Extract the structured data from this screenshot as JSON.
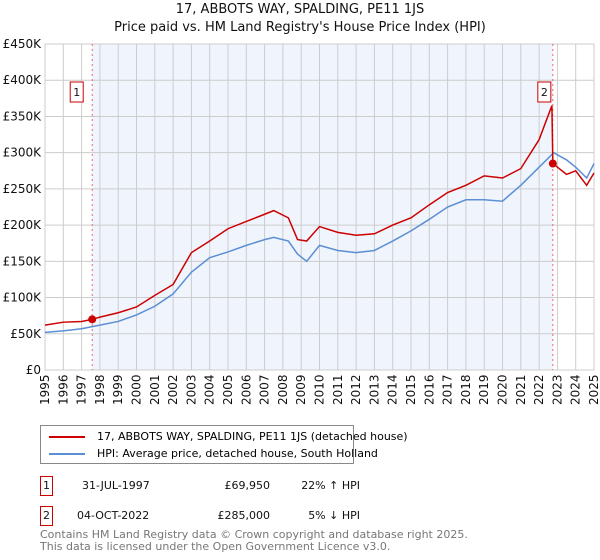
{
  "chart_data": {
    "type": "line",
    "title": "17, ABBOTS WAY, SPALDING, PE11 1JS",
    "subtitle": "Price paid vs. HM Land Registry's House Price Index (HPI)",
    "xlim": [
      1995,
      2025
    ],
    "ylim": [
      0,
      450000
    ],
    "yticks": [
      {
        "v": 0,
        "l": "£0"
      },
      {
        "v": 50000,
        "l": "£50K"
      },
      {
        "v": 100000,
        "l": "£100K"
      },
      {
        "v": 150000,
        "l": "£150K"
      },
      {
        "v": 200000,
        "l": "£200K"
      },
      {
        "v": 250000,
        "l": "£250K"
      },
      {
        "v": 300000,
        "l": "£300K"
      },
      {
        "v": 350000,
        "l": "£350K"
      },
      {
        "v": 400000,
        "l": "£400K"
      },
      {
        "v": 450000,
        "l": "£450K"
      }
    ],
    "xticks": [
      "1995",
      "1996",
      "1997",
      "1998",
      "1999",
      "2000",
      "2001",
      "2002",
      "2003",
      "2004",
      "2005",
      "2006",
      "2007",
      "2008",
      "2009",
      "2010",
      "2011",
      "2012",
      "2013",
      "2014",
      "2015",
      "2016",
      "2017",
      "2018",
      "2019",
      "2020",
      "2021",
      "2022",
      "2023",
      "2024",
      "2025"
    ],
    "grid": true,
    "series": [
      {
        "name": "17, ABBOTS WAY, SPALDING, PE11 1JS (detached house)",
        "color": "#cc0000",
        "x": [
          1995,
          1996,
          1997,
          1997.58,
          1998,
          1999,
          2000,
          2001,
          2002,
          2003,
          2004,
          2005,
          2006,
          2007,
          2007.5,
          2008.3,
          2008.8,
          2009.3,
          2010,
          2011,
          2012,
          2013,
          2014,
          2015,
          2016,
          2017,
          2018,
          2019,
          2020,
          2021,
          2022,
          2022.7,
          2022.75,
          2023.5,
          2024,
          2024.6,
          2025
        ],
        "y": [
          62000,
          66000,
          67000,
          69950,
          73000,
          79000,
          87000,
          103000,
          118000,
          162000,
          178000,
          195000,
          205000,
          215000,
          220000,
          210000,
          180000,
          178000,
          198000,
          190000,
          186000,
          188000,
          200000,
          210000,
          228000,
          245000,
          255000,
          268000,
          265000,
          278000,
          318000,
          365000,
          285000,
          270000,
          275000,
          255000,
          272000
        ]
      },
      {
        "name": "HPI: Average price, detached house, South Holland",
        "color": "#5b8fd4",
        "x": [
          1995,
          1996,
          1997,
          1998,
          1999,
          2000,
          2001,
          2002,
          2003,
          2004,
          2005,
          2006,
          2007,
          2007.5,
          2008.3,
          2008.8,
          2009.3,
          2010,
          2011,
          2012,
          2013,
          2014,
          2015,
          2016,
          2017,
          2018,
          2019,
          2020,
          2021,
          2022,
          2022.8,
          2023.5,
          2024,
          2024.6,
          2025
        ],
        "y": [
          52000,
          54000,
          57000,
          62000,
          67000,
          76000,
          88000,
          105000,
          135000,
          155000,
          163000,
          172000,
          180000,
          183000,
          178000,
          160000,
          150000,
          172000,
          165000,
          162000,
          165000,
          178000,
          192000,
          208000,
          225000,
          235000,
          235000,
          233000,
          255000,
          280000,
          300000,
          290000,
          280000,
          265000,
          285000
        ]
      }
    ],
    "sales": [
      {
        "label": "1",
        "x": 1997.58,
        "y": 69950,
        "date": "31-JUL-1997",
        "price": "£69,950",
        "hpi": "22% ↑ HPI"
      },
      {
        "label": "2",
        "x": 2022.75,
        "y": 285000,
        "date": "04-OCT-2022",
        "price": "£285,000",
        "hpi": "5% ↓ HPI"
      }
    ],
    "legend": "bottom"
  },
  "footer": {
    "line1": "Contains HM Land Registry data © Crown copyright and database right 2025.",
    "line2": "This data is licensed under the Open Government Licence v3.0."
  }
}
